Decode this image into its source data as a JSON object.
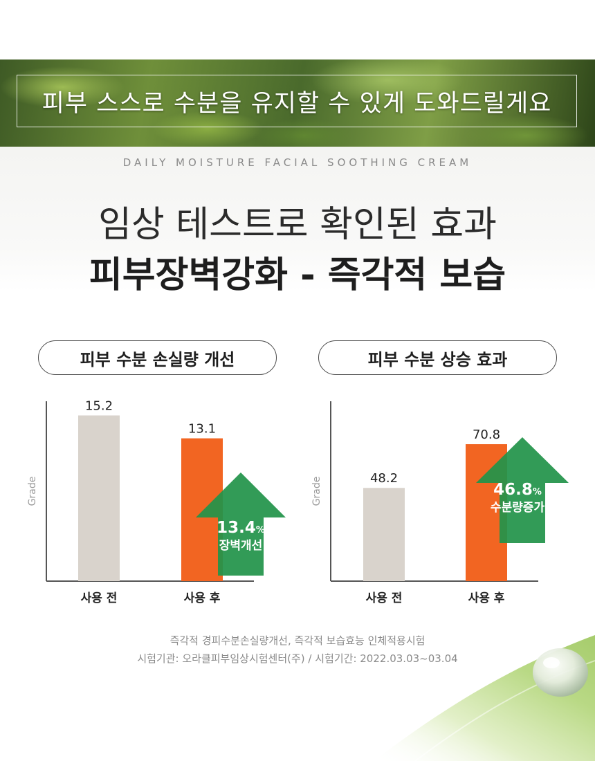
{
  "banner": {
    "text": "피부 스스로 수분을 유지할 수 있게 도와드릴게요"
  },
  "hero": {
    "subtitle": "DAILY MOISTURE FACIAL SOOTHING CREAM",
    "headline_line1": "임상 테스트로 확인된 효과",
    "headline_line2": "피부장벽강화 - 즉각적 보습"
  },
  "colors": {
    "before_bar": "#d9d3cc",
    "after_bar": "#f26522",
    "arrow": "#22934a",
    "axis": "#555555"
  },
  "chart_data": [
    {
      "type": "bar",
      "title": "피부 수분 손실량 개선",
      "ylabel": "Grade",
      "categories": [
        "사용 전",
        "사용 후"
      ],
      "values": [
        15.2,
        13.1
      ],
      "ylim": [
        0,
        16.5
      ],
      "annotation": {
        "value": "13.4",
        "unit": "%",
        "label": "장벽개선",
        "icon": "up-arrow"
      }
    },
    {
      "type": "bar",
      "title": "피부 수분 상승 효과",
      "ylabel": "Grade",
      "categories": [
        "사용 전",
        "사용 후"
      ],
      "values": [
        48.2,
        70.8
      ],
      "ylim": [
        0,
        93
      ],
      "annotation": {
        "value": "46.8",
        "unit": "%",
        "label": "수분량증가",
        "icon": "up-arrow"
      }
    }
  ],
  "footnote": {
    "line1": "즉각적 경피수분손실량개선, 즉각적 보습효능 인체적용시험",
    "line2": "시험기관: 오라클피부임상시험센터(주) / 시험기간: 2022.03.03~03.04"
  }
}
